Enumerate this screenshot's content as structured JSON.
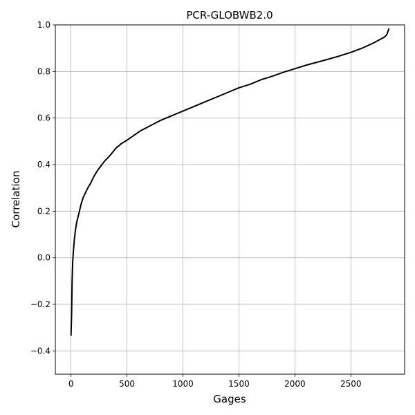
{
  "chart_data": {
    "type": "line",
    "title": "PCR-GLOBWB2.0",
    "xlabel": "Gages",
    "ylabel": "Correlation",
    "xlim": [
      -140,
      2980
    ],
    "ylim": [
      -0.5,
      1.0
    ],
    "xticks": [
      0,
      500,
      1000,
      1500,
      2000,
      2500
    ],
    "yticks": [
      -0.4,
      -0.2,
      0.0,
      0.2,
      0.4,
      0.6,
      0.8,
      1.0
    ],
    "xtick_labels": [
      "0",
      "500",
      "1000",
      "1500",
      "2000",
      "2500"
    ],
    "ytick_labels": [
      "−0.4",
      "−0.2",
      "0.0",
      "0.2",
      "0.4",
      "0.6",
      "0.8",
      "1.0"
    ],
    "grid": true,
    "series": [
      {
        "color": "#000000",
        "x": [
          0,
          5,
          10,
          15,
          20,
          25,
          30,
          40,
          50,
          60,
          75,
          90,
          110,
          130,
          150,
          175,
          200,
          230,
          260,
          300,
          350,
          400,
          450,
          500,
          560,
          620,
          700,
          800,
          900,
          1000,
          1100,
          1200,
          1300,
          1400,
          1500,
          1600,
          1700,
          1800,
          1900,
          2000,
          2100,
          2200,
          2300,
          2400,
          2500,
          2600,
          2700,
          2750,
          2800,
          2820,
          2830,
          2835,
          2840
        ],
        "y": [
          -0.335,
          -0.25,
          -0.1,
          -0.02,
          0.02,
          0.05,
          0.08,
          0.12,
          0.15,
          0.17,
          0.2,
          0.23,
          0.26,
          0.28,
          0.3,
          0.32,
          0.345,
          0.37,
          0.39,
          0.415,
          0.44,
          0.47,
          0.49,
          0.505,
          0.525,
          0.545,
          0.565,
          0.59,
          0.61,
          0.63,
          0.65,
          0.67,
          0.69,
          0.71,
          0.73,
          0.745,
          0.765,
          0.78,
          0.797,
          0.812,
          0.827,
          0.84,
          0.853,
          0.867,
          0.882,
          0.9,
          0.922,
          0.935,
          0.948,
          0.958,
          0.97,
          0.978,
          0.985
        ]
      }
    ]
  }
}
